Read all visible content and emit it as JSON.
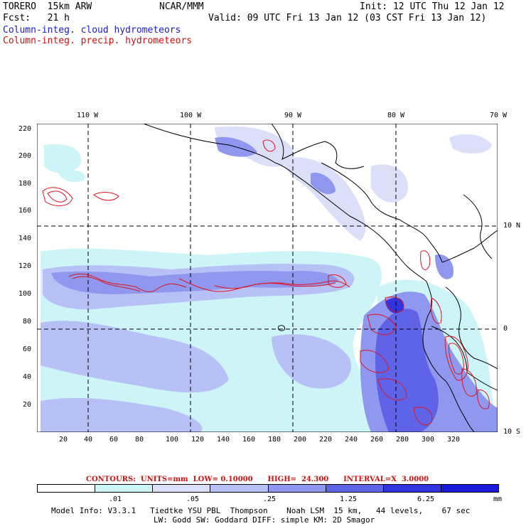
{
  "header": {
    "model": "TORERO  15km ARW",
    "org": "NCAR/MMM",
    "init": "Init: 12 UTC Thu 12 Jan 12",
    "fcst": "Fcst:   21 h",
    "valid": "Valid: 09 UTC Fri 13 Jan 12 (03 CST Fri 13 Jan 12)",
    "field_cloud": "Column-integ. cloud hydrometeors",
    "field_precip": "Column-integ. precip. hydrometeors"
  },
  "map": {
    "lon_labels": [
      "110 W",
      "100 W",
      "90 W",
      "80 W",
      "70 W"
    ],
    "lat_labels": [
      "10 N",
      "0",
      "10 S"
    ],
    "y_ticks": [
      "220",
      "200",
      "180",
      "160",
      "140",
      "120",
      "100",
      "80",
      "60",
      "40",
      "20"
    ],
    "x_ticks": [
      "20",
      "40",
      "60",
      "80",
      "100",
      "120",
      "140",
      "160",
      "180",
      "200",
      "220",
      "240",
      "260",
      "280",
      "300",
      "320"
    ],
    "colors": {
      "shade1": "#cdf5f7",
      "shade2": "#b7c1f5",
      "shade3": "#8f97ef",
      "shade4": "#5e63e8",
      "shade5": "#3234e0",
      "contour": "#e0141e"
    }
  },
  "legend": {
    "contours_text": "CONTOURS:  UNITS=mm  LOW= 0.10000      HIGH=  24.300      INTERVAL=X  3.0000",
    "bins": [
      ".01",
      ".05",
      ".25",
      "1.25",
      "6.25"
    ],
    "unit": "mm",
    "colors": [
      "#ffffff",
      "#cdf5f7",
      "#dcdff8",
      "#b7c1f5",
      "#8f97ef",
      "#5e63e8",
      "#3234e0",
      "#1a1ad8"
    ]
  },
  "model_info": {
    "line1": "Model Info: V3.3.1   Tiedtke YSU PBL  Thompson    Noah LSM  15 km,   44 levels,    67 sec",
    "line2": "LW: Godd SW: Goddard DIFF: simple KM: 2D Smagor"
  }
}
